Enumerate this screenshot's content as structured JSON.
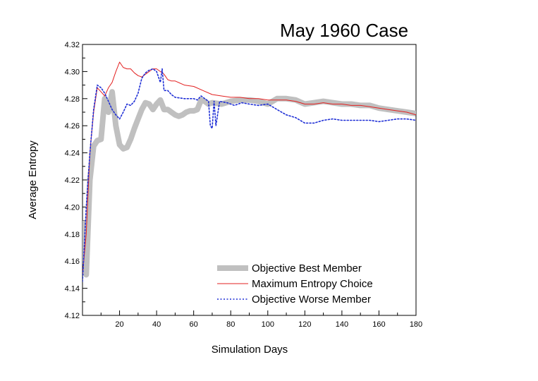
{
  "chart_data": {
    "type": "line",
    "title": "May 1960 Case",
    "xlabel": "Simulation Days",
    "ylabel": "Average Entropy",
    "xlim": [
      0,
      180
    ],
    "ylim": [
      4.12,
      4.32
    ],
    "xticks": [
      20,
      40,
      60,
      80,
      100,
      120,
      140,
      160,
      180
    ],
    "xtick_labels": [
      "20",
      "40",
      "60",
      "80",
      "100",
      "120",
      "140",
      "160",
      "180"
    ],
    "yticks": [
      4.12,
      4.14,
      4.16,
      4.18,
      4.2,
      4.22,
      4.24,
      4.26,
      4.28,
      4.3,
      4.32
    ],
    "ytick_labels": [
      "4.12",
      "4.14",
      "4.16",
      "4.18",
      "4.20",
      "4.22",
      "4.24",
      "4.26",
      "4.28",
      "4.30",
      "4.32"
    ],
    "grid": false,
    "legend_position": "bottom-right",
    "series": [
      {
        "name": "Objective Best Member",
        "color": "#c0c0c0",
        "style": "thick-solid",
        "x": [
          0,
          2,
          4,
          6,
          8,
          10,
          12,
          14,
          16,
          18,
          20,
          22,
          24,
          26,
          28,
          30,
          32,
          34,
          36,
          38,
          40,
          42,
          44,
          46,
          48,
          50,
          52,
          54,
          56,
          58,
          60,
          62,
          64,
          66,
          68,
          70,
          75,
          80,
          85,
          90,
          95,
          100,
          105,
          110,
          115,
          120,
          125,
          130,
          135,
          140,
          145,
          150,
          155,
          160,
          165,
          170,
          175,
          180
        ],
        "y": [
          4.19,
          4.15,
          4.22,
          4.245,
          4.249,
          4.25,
          4.28,
          4.27,
          4.285,
          4.26,
          4.246,
          4.243,
          4.244,
          4.25,
          4.258,
          4.265,
          4.272,
          4.277,
          4.276,
          4.272,
          4.276,
          4.279,
          4.272,
          4.272,
          4.27,
          4.268,
          4.267,
          4.268,
          4.27,
          4.271,
          4.271,
          4.272,
          4.279,
          4.278,
          4.276,
          4.277,
          4.276,
          4.278,
          4.279,
          4.279,
          4.278,
          4.276,
          4.28,
          4.28,
          4.279,
          4.276,
          4.277,
          4.278,
          4.277,
          4.276,
          4.276,
          4.275,
          4.275,
          4.273,
          4.272,
          4.271,
          4.27,
          4.269
        ]
      },
      {
        "name": "Maximum Entropy Choice",
        "color": "#e32020",
        "style": "solid",
        "x": [
          0,
          2,
          4,
          6,
          8,
          10,
          12,
          14,
          16,
          18,
          20,
          22,
          24,
          26,
          28,
          30,
          32,
          34,
          36,
          38,
          40,
          42,
          44,
          46,
          48,
          50,
          55,
          60,
          65,
          70,
          75,
          80,
          85,
          90,
          95,
          100,
          105,
          110,
          115,
          120,
          125,
          130,
          135,
          140,
          145,
          150,
          155,
          160,
          165,
          170,
          175,
          180
        ],
        "y": [
          4.15,
          4.18,
          4.24,
          4.27,
          4.288,
          4.285,
          4.282,
          4.288,
          4.292,
          4.3,
          4.307,
          4.303,
          4.302,
          4.302,
          4.299,
          4.297,
          4.296,
          4.298,
          4.3,
          4.302,
          4.302,
          4.3,
          4.298,
          4.294,
          4.293,
          4.293,
          4.29,
          4.289,
          4.286,
          4.283,
          4.282,
          4.281,
          4.281,
          4.28,
          4.28,
          4.279,
          4.279,
          4.279,
          4.278,
          4.276,
          4.276,
          4.277,
          4.276,
          4.276,
          4.275,
          4.275,
          4.274,
          4.273,
          4.272,
          4.271,
          4.27,
          4.268
        ]
      },
      {
        "name": "Objective Worse Member",
        "color": "#1f2fd6",
        "style": "dotted",
        "x": [
          0,
          2,
          4,
          6,
          8,
          10,
          12,
          14,
          16,
          18,
          20,
          22,
          24,
          26,
          28,
          30,
          32,
          34,
          36,
          38,
          40,
          42,
          43,
          44,
          46,
          48,
          50,
          55,
          60,
          62,
          64,
          66,
          68,
          69,
          70,
          71,
          72,
          74,
          78,
          82,
          86,
          90,
          95,
          100,
          105,
          110,
          115,
          120,
          125,
          130,
          135,
          140,
          145,
          150,
          155,
          160,
          165,
          170,
          175,
          180
        ],
        "y": [
          4.145,
          4.2,
          4.24,
          4.272,
          4.29,
          4.288,
          4.284,
          4.278,
          4.272,
          4.268,
          4.265,
          4.27,
          4.276,
          4.275,
          4.278,
          4.284,
          4.295,
          4.299,
          4.301,
          4.302,
          4.3,
          4.292,
          4.302,
          4.286,
          4.286,
          4.283,
          4.281,
          4.28,
          4.28,
          4.279,
          4.282,
          4.28,
          4.278,
          4.26,
          4.258,
          4.278,
          4.26,
          4.278,
          4.277,
          4.275,
          4.277,
          4.276,
          4.275,
          4.276,
          4.272,
          4.268,
          4.266,
          4.262,
          4.262,
          4.264,
          4.265,
          4.264,
          4.264,
          4.264,
          4.264,
          4.263,
          4.264,
          4.265,
          4.265,
          4.264
        ]
      }
    ]
  }
}
